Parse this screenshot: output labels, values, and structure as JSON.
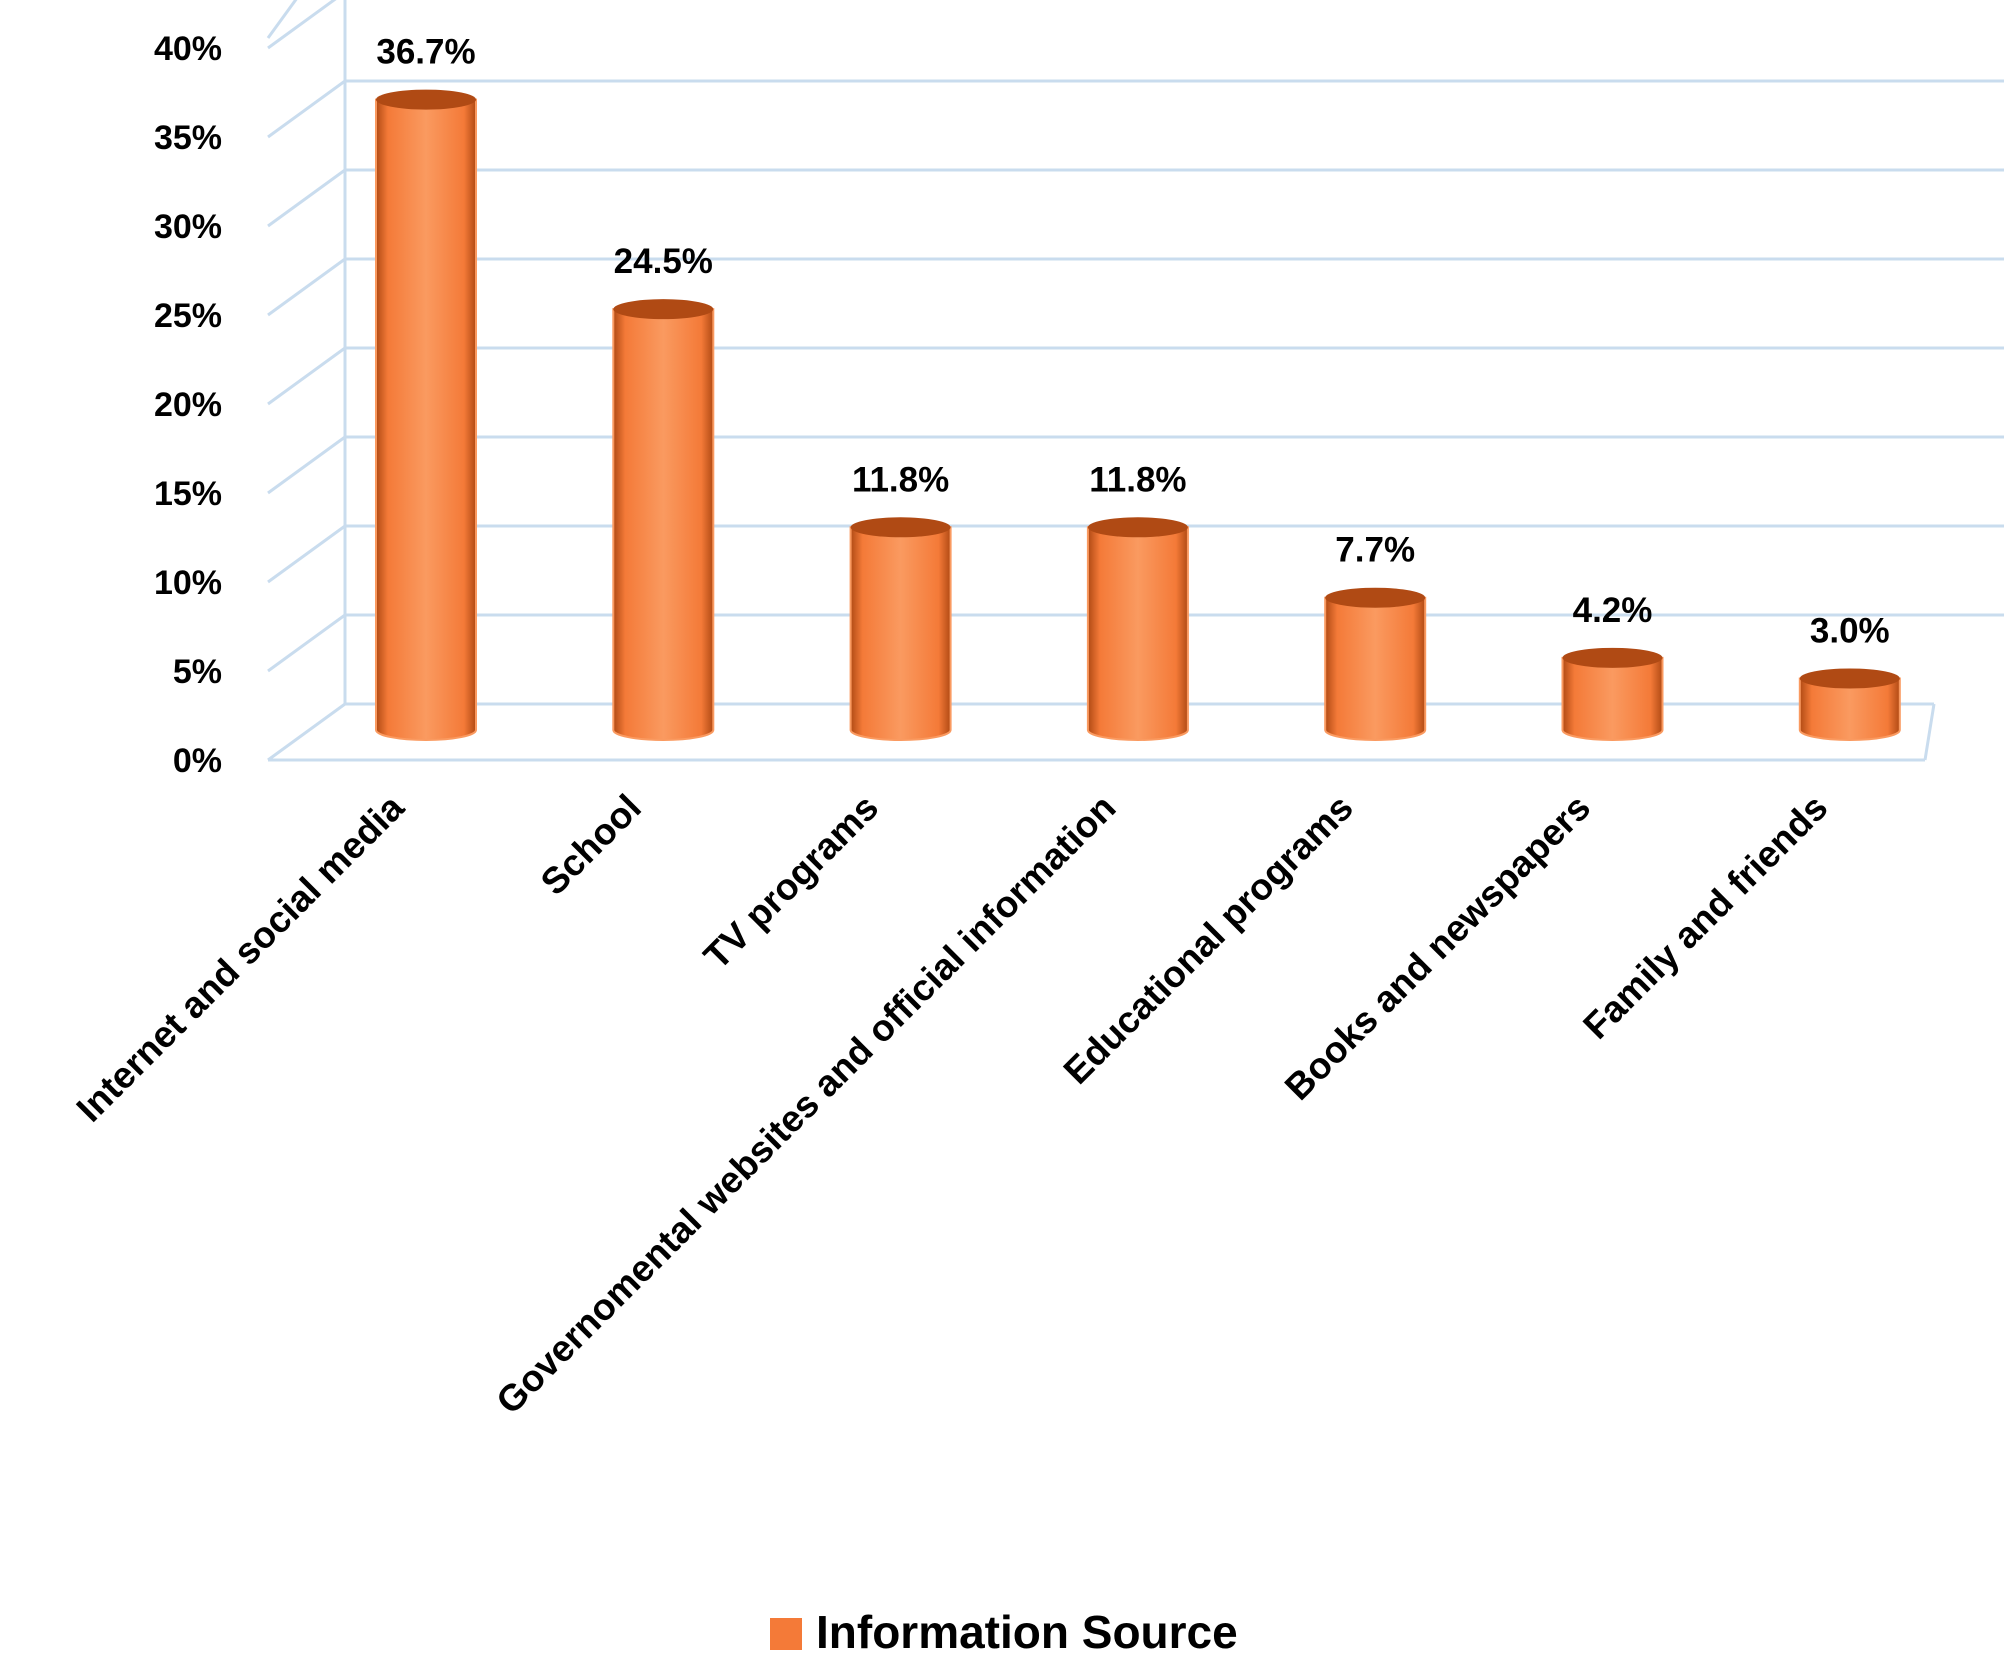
{
  "chart_data": {
    "type": "bar",
    "style": "3d-cylinder",
    "categories": [
      "Internet and social media",
      "School",
      "TV programs",
      "Governomental websites and official information",
      "Educational programs",
      "Books and newspapers",
      "Family and friends"
    ],
    "series": [
      {
        "name": "Information Source",
        "values": [
          36.7,
          24.5,
          11.8,
          11.8,
          7.7,
          4.2,
          3.0
        ],
        "labels": [
          "36.7%",
          "24.5%",
          "11.8%",
          "11.8%",
          "7.7%",
          "4.2%",
          "3.0%"
        ]
      }
    ],
    "y_ticks": [
      0,
      5,
      10,
      15,
      20,
      25,
      30,
      35,
      40
    ],
    "y_tick_labels": [
      "0%",
      "5%",
      "10%",
      "15%",
      "20%",
      "25%",
      "30%",
      "35%",
      "40%"
    ],
    "ylim": [
      0,
      40
    ],
    "grid": true,
    "legend": "bottom-center",
    "colors": {
      "bar": "#F47A38",
      "bar_dark": "#B04A14",
      "bar_light": "#FA9A60",
      "grid": "#C9DCEE"
    }
  }
}
